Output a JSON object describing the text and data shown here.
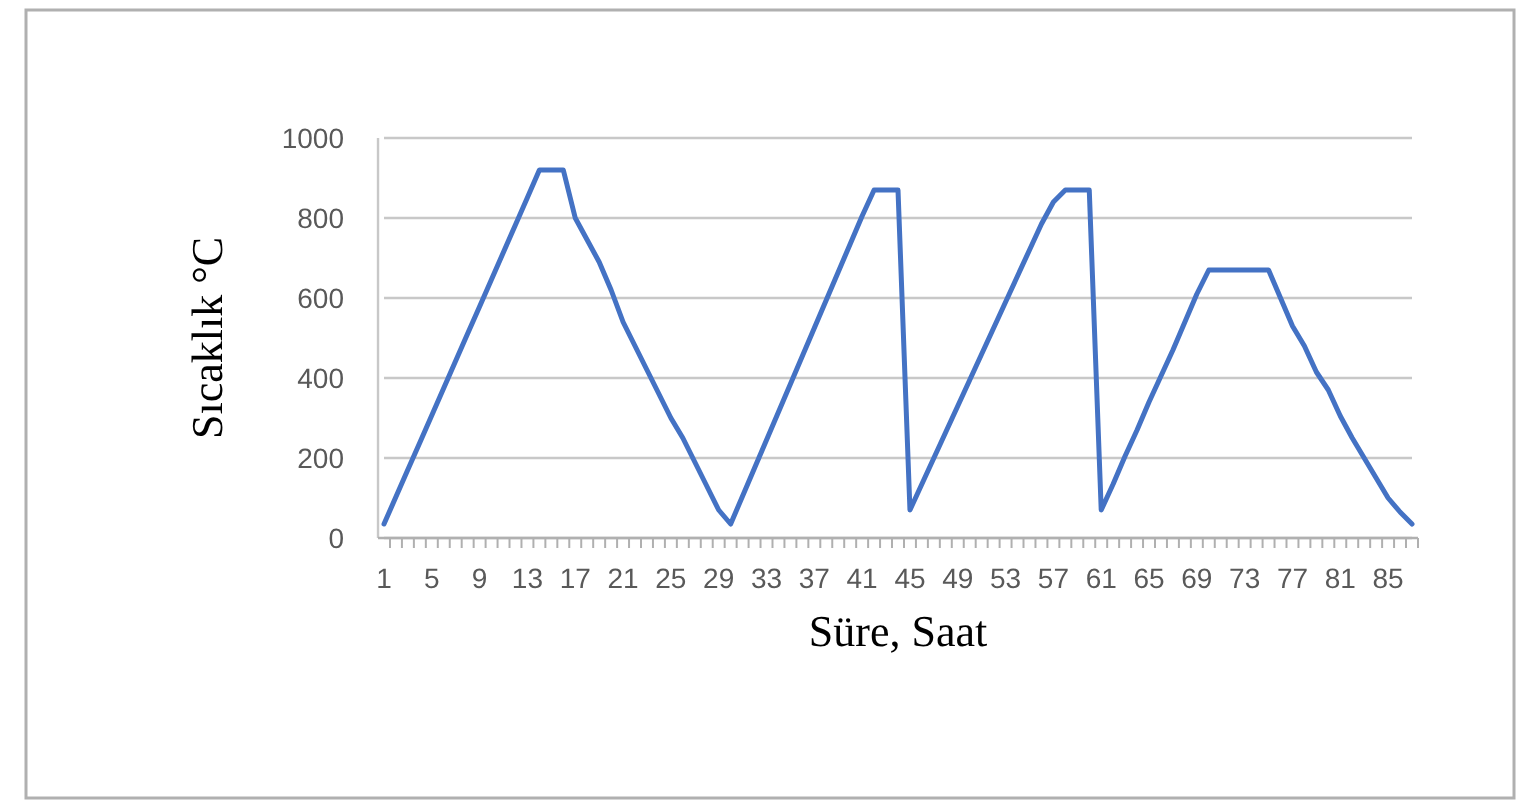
{
  "chart_data": {
    "type": "line",
    "xlabel": "Süre, Saat",
    "ylabel": "Sıcaklık °C",
    "categories": [
      "1",
      null,
      null,
      null,
      "5",
      null,
      null,
      null,
      "9",
      null,
      null,
      null,
      "13",
      null,
      null,
      null,
      "17",
      null,
      null,
      null,
      "21",
      null,
      null,
      null,
      "25",
      null,
      null,
      null,
      "29",
      null,
      null,
      null,
      "33",
      null,
      null,
      null,
      "37",
      null,
      null,
      null,
      "41",
      null,
      null,
      null,
      "45",
      null,
      null,
      null,
      "49",
      null,
      null,
      null,
      "53",
      null,
      null,
      null,
      "57",
      null,
      null,
      null,
      "61",
      null,
      null,
      null,
      "65",
      null,
      null,
      null,
      "69",
      null,
      null,
      null,
      "73",
      null,
      null,
      null,
      "77",
      null,
      null,
      null,
      "81",
      null,
      null,
      null,
      "85",
      null,
      null
    ],
    "series": [
      {
        "color": "#4472c4",
        "values": [
          35,
          103,
          171,
          239,
          307,
          375,
          443,
          511,
          579,
          647,
          715,
          783,
          851,
          920,
          920,
          920,
          800,
          745,
          690,
          620,
          540,
          480,
          420,
          360,
          300,
          250,
          190,
          130,
          70,
          35,
          105,
          175,
          245,
          315,
          385,
          455,
          525,
          595,
          665,
          735,
          805,
          870,
          870,
          870,
          70,
          135,
          200,
          265,
          330,
          395,
          460,
          525,
          590,
          655,
          720,
          785,
          840,
          870,
          870,
          870,
          70,
          135,
          205,
          270,
          340,
          405,
          470,
          540,
          610,
          670,
          670,
          670,
          670,
          670,
          670,
          600,
          530,
          480,
          415,
          370,
          305,
          250,
          200,
          150,
          100,
          65,
          35
        ]
      }
    ],
    "ylim": [
      0,
      1000
    ],
    "yticks": [
      0,
      200,
      400,
      600,
      800,
      1000
    ],
    "grid": "y",
    "marker": "none",
    "line_style": "solid"
  }
}
